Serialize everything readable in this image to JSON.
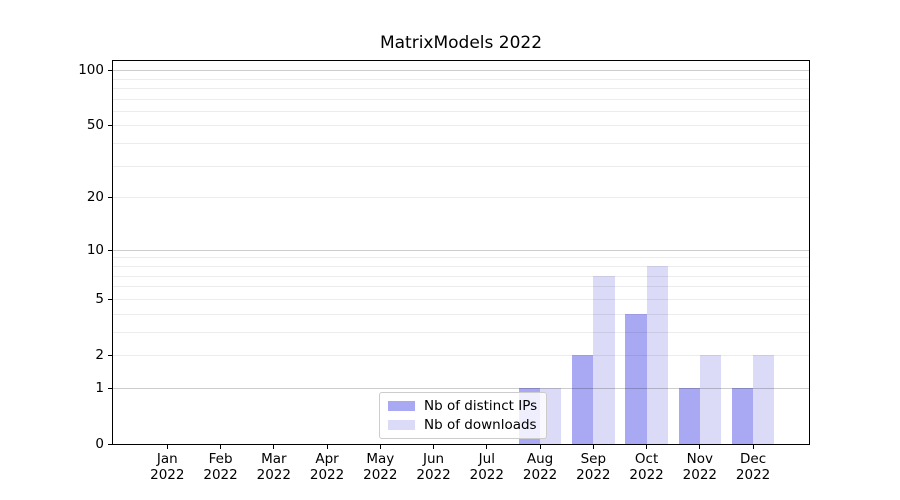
{
  "title": "MatrixModels 2022",
  "chart_data": {
    "type": "bar",
    "categories": [
      "Jan 2022",
      "Feb 2022",
      "Mar 2022",
      "Apr 2022",
      "May 2022",
      "Jun 2022",
      "Jul 2022",
      "Aug 2022",
      "Sep 2022",
      "Oct 2022",
      "Nov 2022",
      "Dec 2022"
    ],
    "series": [
      {
        "name": "Nb of distinct IPs",
        "color": "#a9a9f3",
        "values": [
          0,
          0,
          0,
          0,
          0,
          0,
          0,
          1,
          2,
          4,
          1,
          1
        ]
      },
      {
        "name": "Nb of downloads",
        "color": "#dbdbf8",
        "values": [
          0,
          0,
          0,
          0,
          0,
          0,
          0,
          1,
          7,
          8,
          2,
          2
        ]
      }
    ],
    "yscale": "log1p",
    "ylim": [
      0,
      112
    ],
    "xlim": [
      -1.02,
      12.05
    ],
    "yticks": [
      0,
      1,
      2,
      5,
      10,
      20,
      50,
      100
    ],
    "grid_major": [
      1,
      10,
      100
    ],
    "grid_minor": [
      2,
      3,
      4,
      5,
      6,
      7,
      8,
      9,
      20,
      30,
      40,
      50,
      60,
      70,
      80,
      90
    ],
    "grid": "horizontal",
    "legend_position": "inside lower center-left",
    "bar_width_fraction": 0.4
  },
  "colors": {
    "background": "#ffffff",
    "axis": "#000000",
    "grid_major": "rgba(0,0,0,0.20)",
    "grid_minor": "rgba(0,0,0,0.075)",
    "legend_border": "#cccccc"
  }
}
